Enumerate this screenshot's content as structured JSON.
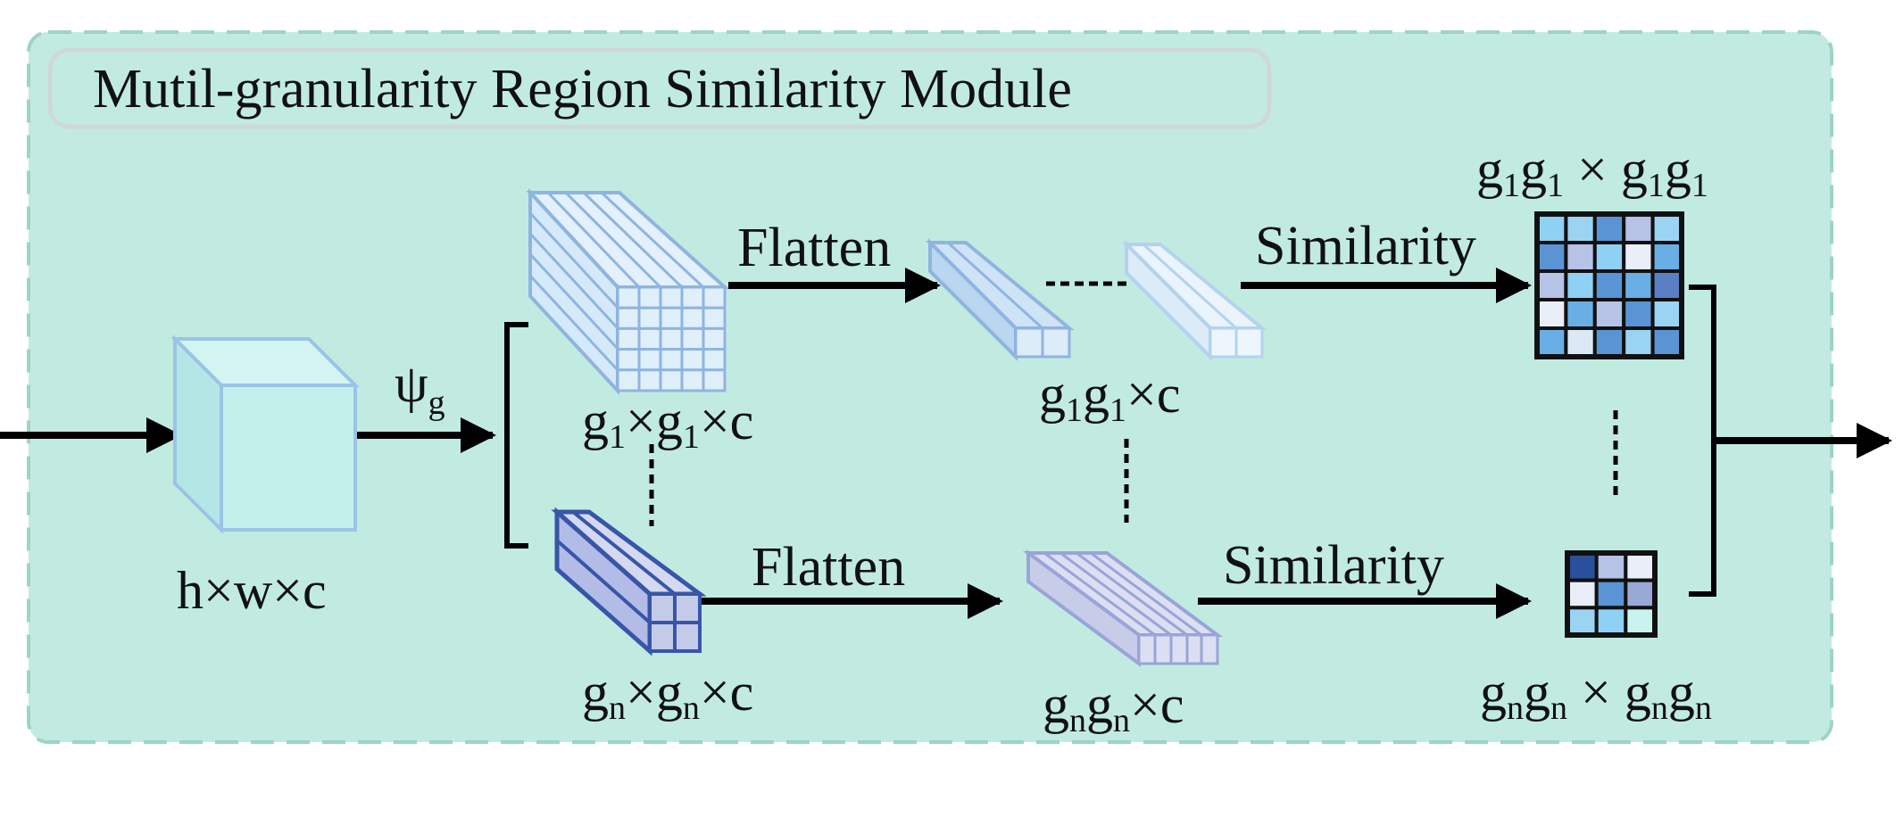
{
  "module": {
    "title": "Mutil-granularity Region Similarity Module",
    "colors": {
      "panel_fill": "#c1ebe1",
      "panel_border": "#9ed4c4",
      "cube_fill": "#c4f0ec",
      "cube_stroke": "#9ac4e6",
      "grid_light_fill": "#dff0fb",
      "grid_light_stroke": "#8fb4e0",
      "grid_dark_fill": "#c4cbe8",
      "grid_dark_stroke": "#3756a8",
      "arrow": "#000000"
    }
  },
  "input": {
    "label_parts": [
      "h×w×c"
    ]
  },
  "pooling": {
    "psi": "ψ",
    "subscript": "g"
  },
  "branch_top": {
    "grid_label": [
      "g",
      "1",
      "×g",
      "1",
      "×c"
    ],
    "flatten_label": "Flatten",
    "flat_label": [
      "g",
      "1",
      "g",
      "1",
      "×c"
    ],
    "similarity_label": "Similarity",
    "matrix_label": [
      "g",
      "1",
      "g",
      "1",
      " × g",
      "1",
      "g",
      "1"
    ],
    "matrix_cells": [
      [
        "#8fd0f5",
        "#9ad4f2",
        "#5a94d4",
        "#b6c2e6",
        "#9ad4f2"
      ],
      [
        "#5a94d4",
        "#b6c2e6",
        "#8fd0f5",
        "#e9eef9",
        "#6aaee6"
      ],
      [
        "#b6c2e6",
        "#8fd0f5",
        "#5a94d4",
        "#6aaee6",
        "#5a7fc4"
      ],
      [
        "#e9eef9",
        "#6aaee6",
        "#b6c2e6",
        "#5a94d4",
        "#9ad4f2"
      ],
      [
        "#6aaee6",
        "#dde8f7",
        "#5a94d4",
        "#9ad4f2",
        "#5a94d4"
      ]
    ]
  },
  "branch_bottom": {
    "grid_label": [
      "g",
      "n",
      "×g",
      "n",
      "×c"
    ],
    "flatten_label": "Flatten",
    "flat_label": [
      "g",
      "n",
      "g",
      "n",
      "×c"
    ],
    "similarity_label": "Similarity",
    "matrix_label": [
      "g",
      "n",
      "g",
      "n",
      " × g",
      "n",
      "g",
      "n"
    ],
    "matrix_cells": [
      [
        "#2a4f9c",
        "#b6c2e6",
        "#e9eef9"
      ],
      [
        "#e9eef9",
        "#5a94d4",
        "#9aa8d6"
      ],
      [
        "#9ad4f2",
        "#8fd0f5",
        "#c9f3ef"
      ]
    ]
  }
}
